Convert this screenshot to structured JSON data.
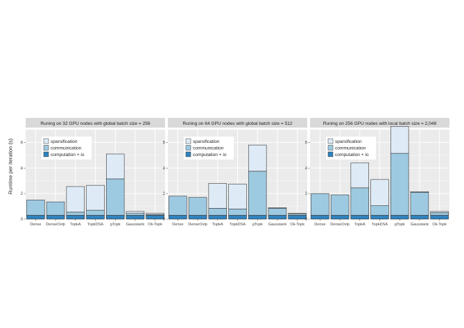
{
  "figure": {
    "ylabel": "Runtime per iteration (s)"
  },
  "colors": {
    "sparsification": "#deebf7",
    "communication": "#9ecae1",
    "computation_io": "#3182bd",
    "panel_bg": "#ebebeb",
    "strip_bg": "#d9d9d9",
    "grid": "#ffffff"
  },
  "chart_data": [
    {
      "type": "bar",
      "stacked": true,
      "title": "Runing on 32 GPU nodes with global batch size = 256",
      "categories": [
        "Dense",
        "DenseOvlp",
        "TopkA",
        "TopkDSA",
        "gTopk",
        "Gaussiank",
        "Ok-Topk"
      ],
      "ylim": [
        0,
        7
      ],
      "yticks": [
        0,
        2,
        4,
        6
      ],
      "grid": true,
      "legend_position": "top-left",
      "series": [
        {
          "name": "computation + io",
          "values": [
            0.3,
            0.3,
            0.3,
            0.3,
            0.3,
            0.3,
            0.3
          ]
        },
        {
          "name": "communication",
          "values": [
            1.2,
            1.05,
            0.25,
            0.4,
            2.85,
            0.15,
            0.05
          ]
        },
        {
          "name": "sparsification",
          "values": [
            0.0,
            0.0,
            2.0,
            1.95,
            1.95,
            0.15,
            0.1
          ]
        }
      ]
    },
    {
      "type": "bar",
      "stacked": true,
      "title": "Runing on 64 GPU nodes with global batch size = 512",
      "categories": [
        "Dense",
        "DenseOvlp",
        "TopkA",
        "TopkDSA",
        "gTopk",
        "Gaussiank",
        "Ok-Topk"
      ],
      "ylim": [
        0,
        7
      ],
      "yticks": [
        0,
        2,
        4,
        6
      ],
      "grid": true,
      "legend_position": "top-left",
      "series": [
        {
          "name": "computation + io",
          "values": [
            0.3,
            0.3,
            0.3,
            0.3,
            0.3,
            0.3,
            0.3
          ]
        },
        {
          "name": "communication",
          "values": [
            1.5,
            1.4,
            0.55,
            0.5,
            3.45,
            0.55,
            0.1
          ]
        },
        {
          "name": "sparsification",
          "values": [
            0.0,
            0.0,
            1.95,
            1.95,
            2.05,
            0.05,
            0.05
          ]
        }
      ]
    },
    {
      "type": "bar",
      "stacked": true,
      "title": "Runing on 256 GPU nodes with local batch size = 2,048",
      "categories": [
        "Dense",
        "DenseOvlp",
        "TopkA",
        "TopkDSA",
        "gTopk",
        "Gaussiank",
        "Ok-Topk"
      ],
      "ylim": [
        0,
        7
      ],
      "yticks": [
        0,
        2,
        4,
        6
      ],
      "grid": true,
      "legend_position": "top-left",
      "series": [
        {
          "name": "computation + io",
          "values": [
            0.3,
            0.3,
            0.3,
            0.3,
            0.3,
            0.3,
            0.3
          ]
        },
        {
          "name": "communication",
          "values": [
            1.7,
            1.6,
            2.15,
            0.75,
            4.85,
            1.8,
            0.2
          ]
        },
        {
          "name": "sparsification",
          "values": [
            0.0,
            0.0,
            1.95,
            2.05,
            2.1,
            0.05,
            0.1
          ]
        }
      ]
    }
  ]
}
